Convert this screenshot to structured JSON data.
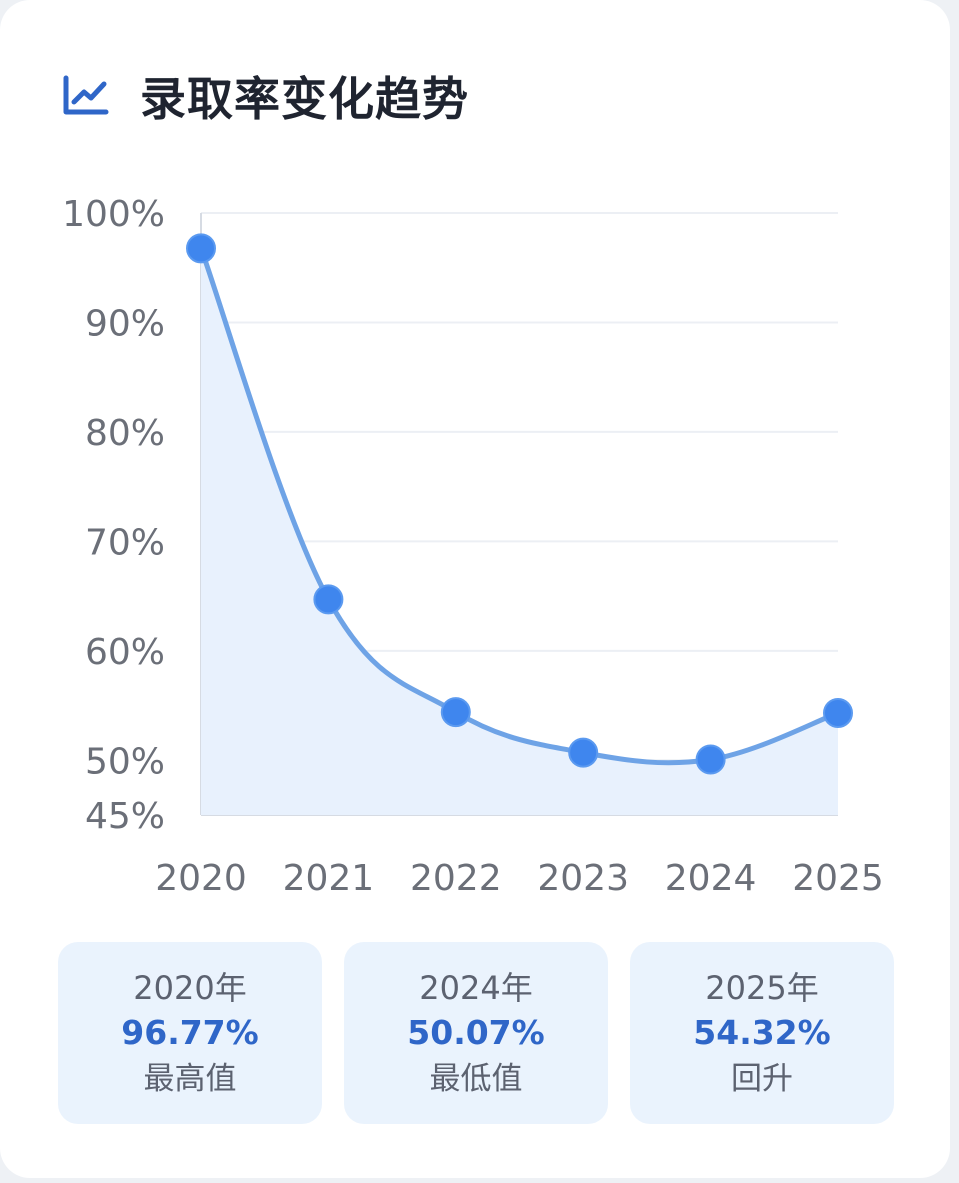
{
  "header": {
    "title": "录取率变化趋势",
    "icon": "line-chart-icon"
  },
  "colors": {
    "accent": "#2f66c8",
    "line": "#6ea3e6",
    "point": "#3f86ee",
    "area": "#e8f1fd",
    "grid": "#eceff4",
    "stat_bg": "#eaf3fd"
  },
  "chart_data": {
    "type": "line",
    "title": "录取率变化趋势",
    "categories": [
      "2020",
      "2021",
      "2022",
      "2023",
      "2024",
      "2025"
    ],
    "series": [
      {
        "values": [
          96.77,
          64.7,
          54.4,
          50.7,
          50.07,
          54.32
        ]
      }
    ],
    "y_ticks": [
      100,
      90,
      80,
      70,
      60,
      50,
      45
    ],
    "y_tick_labels": [
      "100%",
      "90%",
      "80%",
      "70%",
      "60%",
      "50%",
      "45%"
    ],
    "ylim": [
      45,
      100
    ],
    "xlabel": "",
    "ylabel": "",
    "grid": true,
    "smooth": true,
    "area_fill": true,
    "legend": "none"
  },
  "stats": [
    {
      "year": "2020年",
      "value": "96.77%",
      "desc": "最高值"
    },
    {
      "year": "2024年",
      "value": "50.07%",
      "desc": "最低值"
    },
    {
      "year": "2025年",
      "value": "54.32%",
      "desc": "回升"
    }
  ]
}
